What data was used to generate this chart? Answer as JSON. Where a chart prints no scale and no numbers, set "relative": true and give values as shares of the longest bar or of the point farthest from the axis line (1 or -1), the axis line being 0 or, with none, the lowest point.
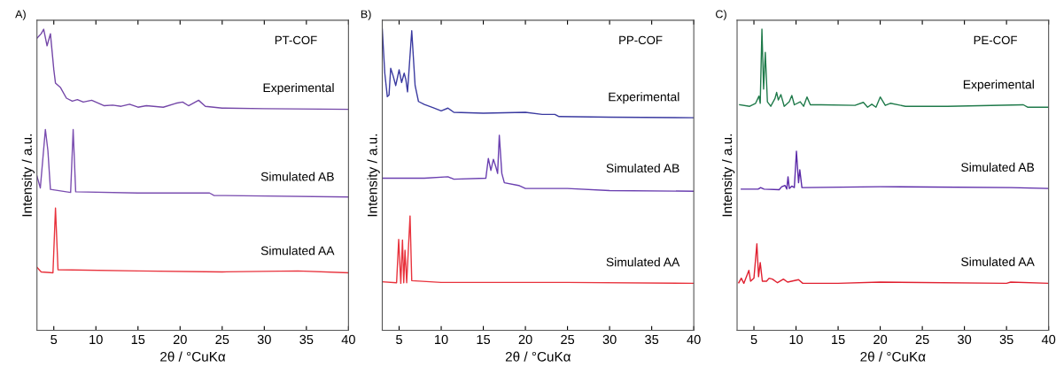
{
  "chart_data": [
    {
      "type": "line",
      "title": "A)",
      "subtitle": "PT-COF",
      "xlabel": "2θ / °CuKα",
      "ylabel": "Intensity / a.u.",
      "relative": true,
      "xlim": [
        3,
        40
      ],
      "xticks": [
        5,
        10,
        15,
        20,
        25,
        30,
        35,
        40
      ],
      "tick_labels": "x",
      "grid": false,
      "legend": false,
      "series": [
        {
          "name": "Experimental",
          "color": "#7447a8",
          "x": [
            3,
            3.5,
            3.8,
            4.2,
            4.6,
            5.0,
            5.2,
            5.8,
            6.5,
            7.2,
            7.8,
            8.5,
            9.5,
            11,
            12,
            13,
            14,
            15,
            16,
            18,
            19.5,
            20.3,
            21,
            22.2,
            23,
            25,
            30,
            40
          ],
          "values": [
            0.97,
            0.985,
            1.0,
            0.945,
            0.985,
            0.866,
            0.821,
            0.806,
            0.771,
            0.761,
            0.766,
            0.758,
            0.764,
            0.746,
            0.748,
            0.744,
            0.751,
            0.741,
            0.746,
            0.741,
            0.754,
            0.758,
            0.746,
            0.764,
            0.744,
            0.738,
            0.736,
            0.734
          ]
        },
        {
          "name": "Simulated AB",
          "color": "#7a4db0",
          "x": [
            3,
            3.4,
            4.0,
            4.3,
            4.6,
            7.0,
            7.3,
            7.6,
            15,
            23.5,
            24,
            40
          ],
          "values": [
            0.512,
            0.473,
            0.667,
            0.597,
            0.468,
            0.458,
            0.667,
            0.46,
            0.456,
            0.456,
            0.448,
            0.443
          ]
        },
        {
          "name": "Simulated AA",
          "color": "#e8323c",
          "x": [
            3,
            3.5,
            4.9,
            5.2,
            5.5,
            15,
            25,
            34,
            40
          ],
          "values": [
            0.209,
            0.194,
            0.191,
            0.406,
            0.201,
            0.197,
            0.194,
            0.197,
            0.191
          ]
        }
      ]
    },
    {
      "type": "line",
      "title": "B)",
      "subtitle": "PP-COF",
      "xlabel": "2θ / °CuKα",
      "ylabel": "Intensity / a.u.",
      "relative": true,
      "xlim": [
        3,
        40
      ],
      "xticks": [
        5,
        10,
        15,
        20,
        25,
        30,
        35,
        40
      ],
      "tick_labels": "x",
      "grid": false,
      "legend": false,
      "series": [
        {
          "name": "Experimental",
          "color": "#3a3aa0",
          "x": [
            3,
            3.3,
            3.6,
            3.8,
            4.0,
            4.3,
            4.6,
            5.0,
            5.3,
            5.6,
            5.8,
            6.0,
            6.5,
            6.9,
            7.3,
            8,
            9,
            10,
            10.8,
            11.5,
            15,
            20,
            22,
            23.5,
            24,
            30,
            40
          ],
          "values": [
            1.0,
            0.854,
            0.776,
            0.781,
            0.87,
            0.844,
            0.813,
            0.865,
            0.823,
            0.854,
            0.833,
            0.792,
            0.995,
            0.813,
            0.76,
            0.75,
            0.74,
            0.729,
            0.738,
            0.724,
            0.721,
            0.724,
            0.717,
            0.717,
            0.71,
            0.708,
            0.706
          ]
        },
        {
          "name": "Simulated AB",
          "color": "#6a3fb0",
          "x": [
            3,
            5,
            8,
            10.8,
            11.5,
            15.3,
            15.6,
            15.9,
            16.2,
            16.5,
            16.7,
            16.9,
            17.2,
            17.5,
            19.2,
            20,
            25,
            30,
            40
          ],
          "values": [
            0.505,
            0.505,
            0.505,
            0.51,
            0.502,
            0.505,
            0.571,
            0.531,
            0.568,
            0.542,
            0.521,
            0.648,
            0.521,
            0.49,
            0.481,
            0.471,
            0.471,
            0.464,
            0.462
          ]
        },
        {
          "name": "Simulated AA",
          "color": "#e8323c",
          "x": [
            3,
            4.7,
            4.95,
            5.2,
            5.4,
            5.55,
            5.7,
            5.9,
            6.3,
            6.5,
            10,
            25,
            40
          ],
          "values": [
            0.161,
            0.158,
            0.302,
            0.156,
            0.3,
            0.158,
            0.266,
            0.158,
            0.38,
            0.165,
            0.159,
            0.159,
            0.156
          ]
        }
      ]
    },
    {
      "type": "line",
      "title": "C)",
      "subtitle": "PE-COF",
      "xlabel": "2θ / °CuKα",
      "ylabel": "Intensity / a.u.",
      "relative": true,
      "xlim": [
        3,
        40
      ],
      "xticks": [
        5,
        10,
        15,
        20,
        25,
        30,
        35,
        40
      ],
      "tick_labels": "x",
      "grid": false,
      "legend": false,
      "series": [
        {
          "name": "Experimental",
          "color": "#1f7a4a",
          "x": [
            3.3,
            4.5,
            5.2,
            5.6,
            5.75,
            5.95,
            6.15,
            6.35,
            6.6,
            7,
            7.5,
            7.7,
            7.9,
            8.2,
            8.6,
            9.2,
            9.5,
            9.8,
            10.5,
            10.9,
            11.3,
            11.7,
            13,
            17,
            18,
            18.5,
            19,
            19.5,
            20,
            20.6,
            21.2,
            23,
            28,
            37,
            37.5,
            40
          ],
          "values": [
            0.749,
            0.744,
            0.754,
            0.778,
            0.754,
            1.0,
            0.801,
            0.923,
            0.759,
            0.744,
            0.77,
            0.79,
            0.765,
            0.783,
            0.744,
            0.759,
            0.78,
            0.749,
            0.759,
            0.744,
            0.775,
            0.749,
            0.749,
            0.747,
            0.757,
            0.741,
            0.751,
            0.741,
            0.775,
            0.747,
            0.754,
            0.744,
            0.744,
            0.749,
            0.741,
            0.741
          ]
        },
        {
          "name": "Simulated AB",
          "color": "#5b2aa8",
          "x": [
            3.5,
            5.5,
            5.8,
            6.2,
            8,
            8.3,
            8.7,
            8.9,
            9.05,
            9.2,
            9.5,
            9.8,
            10.05,
            10.3,
            10.45,
            10.7,
            11,
            20,
            35.5,
            40
          ],
          "values": [
            0.469,
            0.469,
            0.474,
            0.469,
            0.467,
            0.477,
            0.481,
            0.469,
            0.51,
            0.471,
            0.479,
            0.474,
            0.595,
            0.49,
            0.533,
            0.474,
            0.474,
            0.477,
            0.474,
            0.471
          ]
        },
        {
          "name": "Simulated AA",
          "color": "#e02030",
          "x": [
            3.2,
            3.5,
            3.8,
            4.4,
            4.6,
            5.0,
            5.35,
            5.55,
            5.75,
            6.0,
            6.5,
            6.8,
            7.2,
            7.8,
            8.5,
            9,
            10.3,
            10.8,
            15,
            20,
            35,
            35.5,
            40
          ],
          "values": [
            0.158,
            0.173,
            0.156,
            0.199,
            0.163,
            0.173,
            0.287,
            0.178,
            0.225,
            0.163,
            0.163,
            0.173,
            0.17,
            0.158,
            0.17,
            0.16,
            0.168,
            0.156,
            0.156,
            0.16,
            0.156,
            0.16,
            0.156
          ]
        }
      ]
    }
  ]
}
